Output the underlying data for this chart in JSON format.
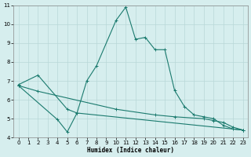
{
  "xlabel": "Humidex (Indice chaleur)",
  "background_color": "#d6eeee",
  "line_color": "#1a7a6e",
  "grid_color": "#b8d8d8",
  "xlim": [
    -0.5,
    23.5
  ],
  "ylim": [
    4,
    11
  ],
  "xticks": [
    0,
    1,
    2,
    3,
    4,
    5,
    6,
    7,
    8,
    9,
    10,
    11,
    12,
    13,
    14,
    15,
    16,
    17,
    18,
    19,
    20,
    21,
    22,
    23
  ],
  "yticks": [
    4,
    5,
    6,
    7,
    8,
    9,
    10,
    11
  ],
  "curve1_x": [
    0,
    2,
    5,
    6,
    7,
    8,
    10,
    11,
    12,
    13,
    14,
    15,
    16,
    17,
    18,
    19,
    20,
    21,
    22,
    23
  ],
  "curve1_y": [
    6.8,
    7.3,
    5.5,
    5.3,
    7.0,
    7.8,
    10.2,
    10.9,
    9.2,
    9.3,
    8.65,
    8.65,
    6.5,
    5.65,
    5.2,
    5.1,
    5.0,
    4.65,
    4.45,
    4.4
  ],
  "curve2_x": [
    0,
    2,
    10,
    14,
    16,
    19,
    20,
    21,
    22,
    23
  ],
  "curve2_y": [
    6.75,
    6.45,
    5.5,
    5.2,
    5.1,
    5.0,
    4.9,
    4.8,
    4.55,
    4.4
  ],
  "curve3_x": [
    0,
    4,
    5,
    6,
    23
  ],
  "curve3_y": [
    6.75,
    4.95,
    4.3,
    5.3,
    4.4
  ]
}
